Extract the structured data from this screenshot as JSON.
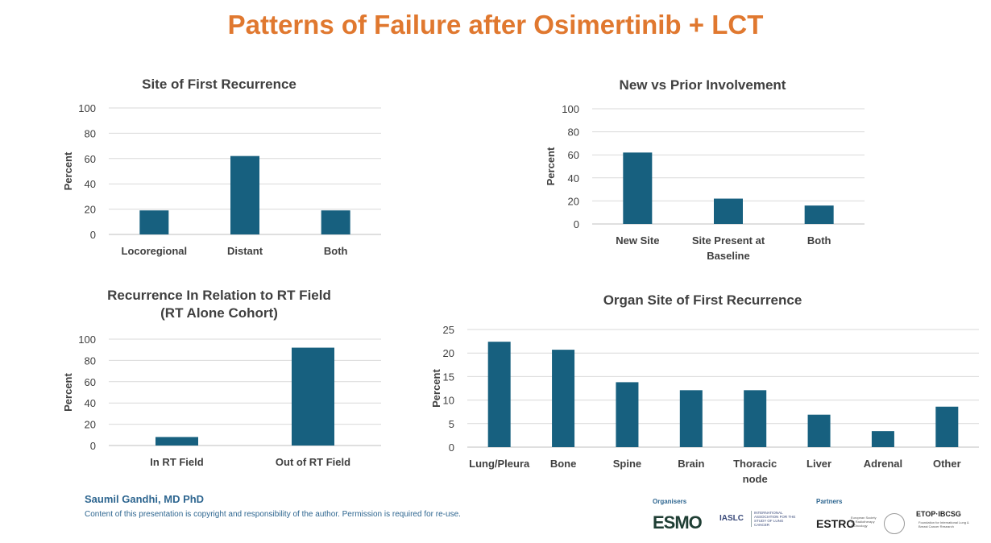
{
  "page": {
    "title": "Patterns of Failure after Osimertinib + LCT",
    "title_color": "#E0782F",
    "bar_color": "#17607F",
    "author": "Saumil Gandhi, MD PhD",
    "copyright": "Content of this presentation is copyright and responsibility of the author. Permission is required for re-use."
  },
  "logos": {
    "organisers_label": "Organisers",
    "partners_label": "Partners",
    "esmo": "ESMO",
    "iaslc": "IASLC",
    "iaslc_sub": "INTERNATIONAL ASSOCIATION FOR THE STUDY OF LUNG CANCER",
    "estro": "ESTRO",
    "estro_sub": "European Society for Radiotherapy & Oncology",
    "etop": "ETOP·IBCSG",
    "etop_sub": "Foundation for International Lung & Breast Cancer Research"
  },
  "chart_data": [
    {
      "type": "bar",
      "title": [
        "Site of First Recurrence"
      ],
      "ylabel": "Percent",
      "ylim": [
        0,
        100
      ],
      "yticks": [
        0,
        20,
        40,
        60,
        80,
        100
      ],
      "categories": [
        [
          "Locoregional"
        ],
        [
          "Distant"
        ],
        [
          "Both"
        ]
      ],
      "values": [
        19,
        62,
        19
      ]
    },
    {
      "type": "bar",
      "title": [
        "New vs Prior Involvement"
      ],
      "ylabel": "Percent",
      "ylim": [
        0,
        100
      ],
      "yticks": [
        0,
        20,
        40,
        60,
        80,
        100
      ],
      "categories": [
        [
          "New Site"
        ],
        [
          "Site Present at",
          "Baseline"
        ],
        [
          "Both"
        ]
      ],
      "values": [
        62,
        22,
        16
      ]
    },
    {
      "type": "bar",
      "title": [
        "Recurrence In Relation to RT Field",
        "(RT Alone Cohort)"
      ],
      "ylabel": "Percent",
      "ylim": [
        0,
        100
      ],
      "yticks": [
        0,
        20,
        40,
        60,
        80,
        100
      ],
      "categories": [
        [
          "In RT Field"
        ],
        [
          "Out of RT Field"
        ]
      ],
      "values": [
        8,
        92
      ]
    },
    {
      "type": "bar",
      "title": [
        "Organ Site of First Recurrence"
      ],
      "ylabel": "Percent",
      "ylim": [
        0,
        25
      ],
      "yticks": [
        0,
        5,
        10,
        15,
        20,
        25
      ],
      "categories": [
        [
          "Lung/Pleura"
        ],
        [
          "Bone"
        ],
        [
          "Spine"
        ],
        [
          "Brain"
        ],
        [
          "Thoracic",
          "node"
        ],
        [
          "Liver"
        ],
        [
          "Adrenal"
        ],
        [
          "Other"
        ]
      ],
      "values": [
        22.4,
        20.7,
        13.8,
        12.1,
        12.1,
        6.9,
        3.4,
        8.6
      ]
    }
  ]
}
